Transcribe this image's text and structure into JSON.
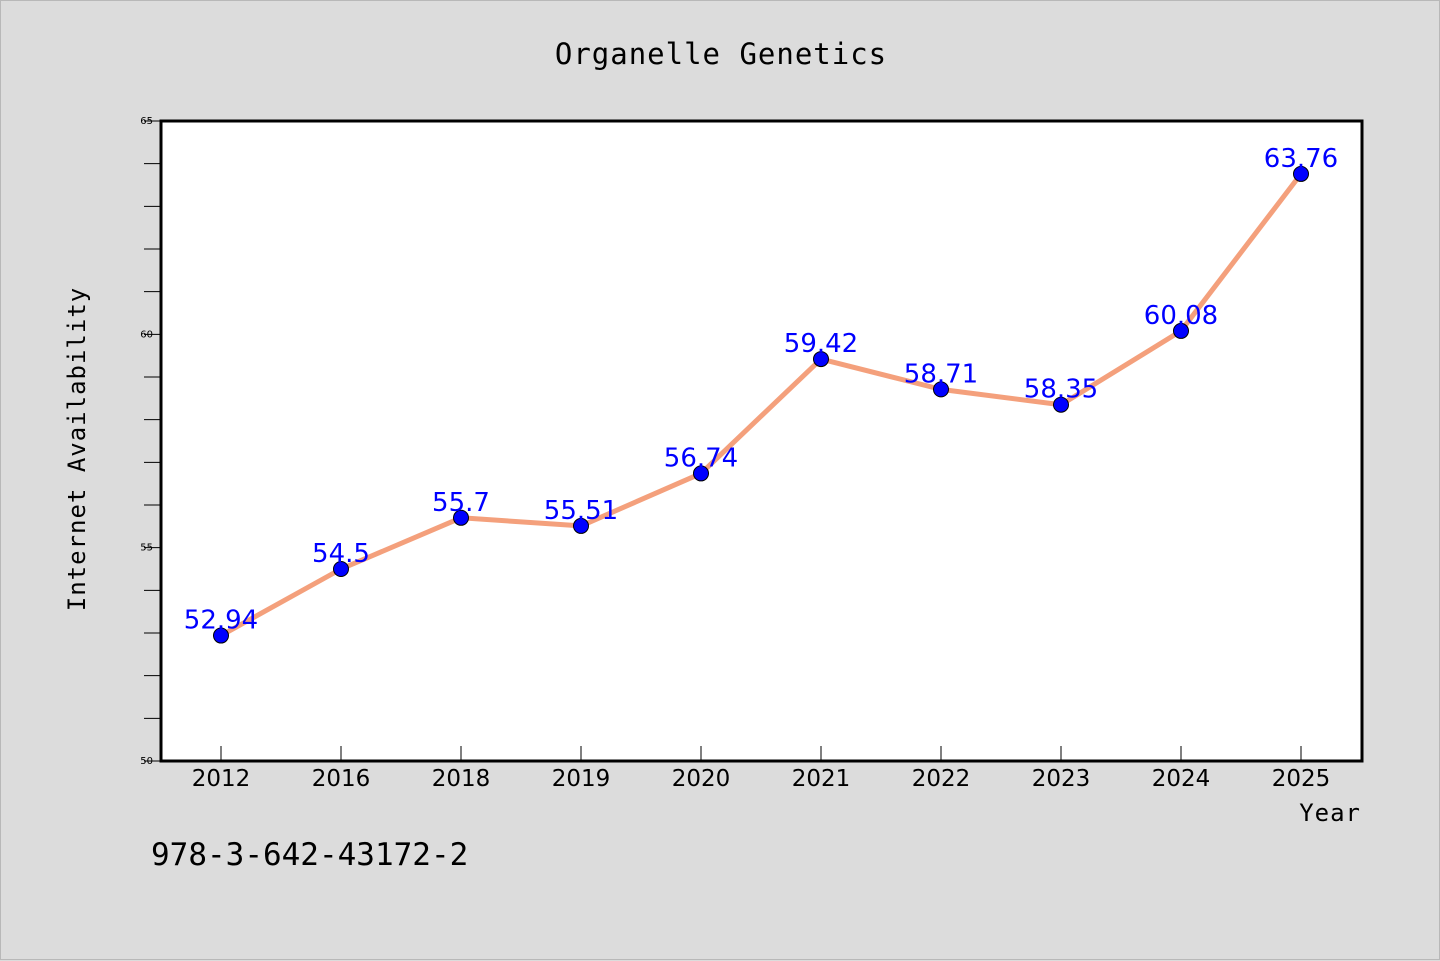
{
  "chart_data": {
    "type": "line",
    "title": "Organelle Genetics",
    "xlabel": "Year",
    "ylabel": "Internet Availability",
    "categories": [
      "2012",
      "2016",
      "2018",
      "2019",
      "2020",
      "2021",
      "2022",
      "2023",
      "2024",
      "2025"
    ],
    "series": [
      {
        "values": [
          52.94,
          54.5,
          55.7,
          55.51,
          56.74,
          59.42,
          58.71,
          58.35,
          60.08,
          63.76
        ],
        "labels": [
          "52.94",
          "54.5",
          "55.7",
          "55.51",
          "56.74",
          "59.42",
          "58.71",
          "58.35",
          "60.08",
          "63.76"
        ],
        "line_color": "#f4a07c",
        "marker_color": "#0000ff"
      }
    ],
    "ylim": [
      50,
      65
    ],
    "yticks": [
      "50",
      "55",
      "60",
      "65"
    ],
    "grid": false,
    "legend": "none"
  },
  "footer": {
    "isbn": "978-3-642-43172-2"
  }
}
